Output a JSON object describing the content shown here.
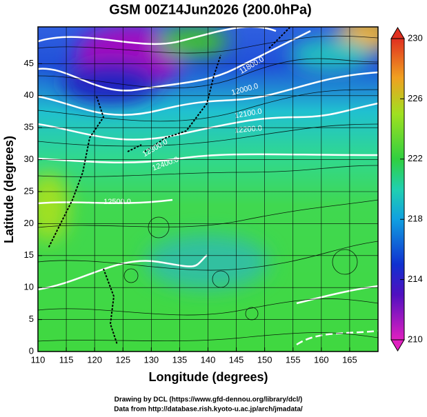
{
  "chart_data": {
    "type": "map",
    "title": "GSM 00Z14Jun2026 (200.0hPa)",
    "xlabel": "Longitude (degrees)",
    "ylabel": "Latitude  (degrees)",
    "xlim": [
      110,
      170
    ],
    "xticks": [
      110,
      115,
      120,
      125,
      130,
      135,
      140,
      145,
      150,
      155,
      160,
      165
    ],
    "ylim": [
      0,
      50
    ],
    "yticks": [
      0,
      5,
      10,
      15,
      20,
      25,
      30,
      35,
      40,
      45
    ],
    "grid": true,
    "colorbar": {
      "lim": [
        210,
        230
      ],
      "ticks": [
        210,
        214,
        218,
        222,
        226,
        230
      ]
    },
    "contour_labels": [
      "11800.0",
      "12000.0",
      "12100.0",
      "12200.0",
      "12300.0",
      "12400.0",
      "12500.0"
    ],
    "credits": [
      "Drawing by DCL (https://www.gfd-dennou.org/library/dcl/)",
      "Data from http://database.rish.kyoto-u.ac.jp/arch/jmadata/"
    ]
  }
}
